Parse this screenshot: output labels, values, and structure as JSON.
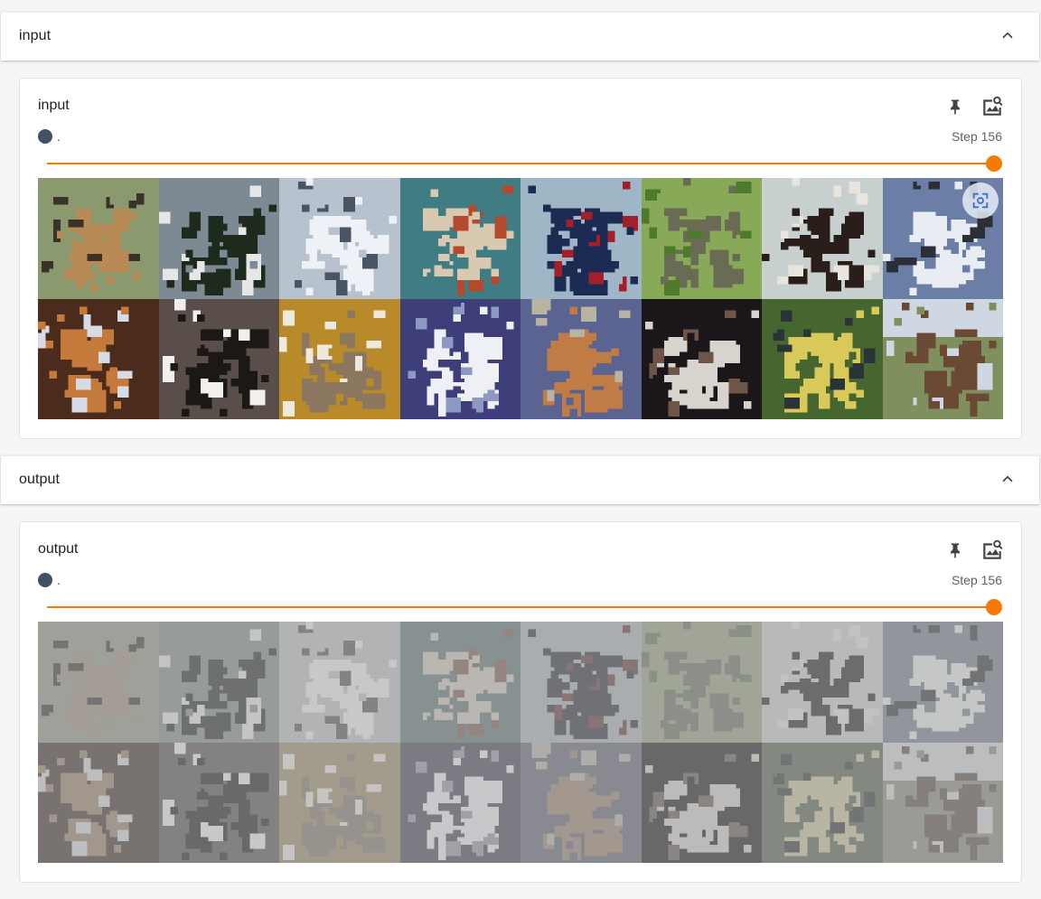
{
  "sections": [
    {
      "header": "input",
      "card_title": "input",
      "run_label": ".",
      "step_label": "Step 156",
      "slider_value": 1.0,
      "faded": false,
      "show_fullscreen_on_tile": 7
    },
    {
      "header": "output",
      "card_title": "output",
      "run_label": ".",
      "step_label": "Step 156",
      "slider_value": 1.0,
      "faded": true,
      "show_fullscreen_on_tile": -1
    }
  ],
  "colors": {
    "accent": "#f57c00",
    "run_dot": "#425066"
  },
  "icons": {
    "collapse": "chevron-up-icon",
    "pin": "pin-icon",
    "image_search": "image-search-icon",
    "fullscreen": "focus-frame-icon"
  },
  "tiles": [
    {
      "subject": "horse-rider",
      "bg": "#8a9a6e",
      "fg": "#b88a55",
      "accent": "#3a3128"
    },
    {
      "subject": "dog-black-white",
      "bg": "#7d8a93",
      "fg": "#1e2a1c",
      "accent": "#e6e6e6"
    },
    {
      "subject": "boat-gray",
      "bg": "#b8c2cf",
      "fg": "#eef1f5",
      "accent": "#4a5462"
    },
    {
      "subject": "plane-sea",
      "bg": "#3f7c84",
      "fg": "#d9c9b0",
      "accent": "#b34a2e"
    },
    {
      "subject": "ship-harbor",
      "bg": "#9fb6c6",
      "fg": "#1c2b52",
      "accent": "#a51f2a"
    },
    {
      "subject": "ostrich-grass",
      "bg": "#88a958",
      "fg": "#6a6b55",
      "accent": "#4e7a2c"
    },
    {
      "subject": "horse-dark",
      "bg": "#c8cfcf",
      "fg": "#2a1e1a",
      "accent": "#e8e4de"
    },
    {
      "subject": "plane-white",
      "bg": "#6b7fa6",
      "fg": "#e9ecf2",
      "accent": "#2c2f36"
    },
    {
      "subject": "cat-orange",
      "bg": "#4b2c1c",
      "fg": "#c47a3a",
      "accent": "#d6dbe6"
    },
    {
      "subject": "dog-sitting",
      "bg": "#5a4e4a",
      "fg": "#1c1816",
      "accent": "#f1f0ee"
    },
    {
      "subject": "cat-tabby",
      "bg": "#b98a2a",
      "fg": "#8b7660",
      "accent": "#efe8dc"
    },
    {
      "subject": "boat-white",
      "bg": "#3d3e7a",
      "fg": "#eef0f6",
      "accent": "#8d99c0"
    },
    {
      "subject": "cat-standing",
      "bg": "#5b6390",
      "fg": "#c17b45",
      "accent": "#b9b3a4"
    },
    {
      "subject": "dog-puppy",
      "bg": "#1a161a",
      "fg": "#d8d3cc",
      "accent": "#6e5548"
    },
    {
      "subject": "car-yellow",
      "bg": "#45662f",
      "fg": "#d9c95a",
      "accent": "#2a3437"
    },
    {
      "subject": "horse-brown",
      "bg": "#7f8f5e",
      "fg": "#6a4a34",
      "accent": "#cfd8e2"
    }
  ]
}
